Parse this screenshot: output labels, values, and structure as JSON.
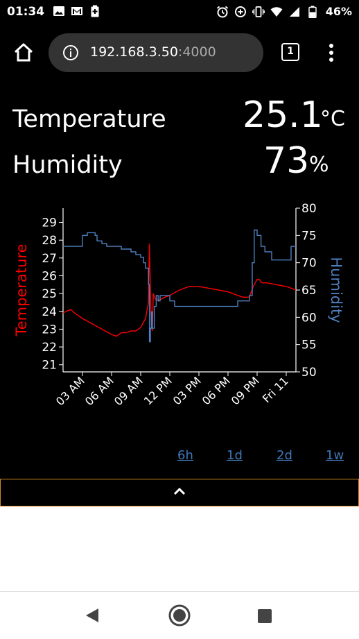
{
  "status_bar": {
    "time": "01:34",
    "battery_percent": "46%",
    "left_icons": [
      "image-icon",
      "gmail-icon",
      "battery-saver-icon"
    ],
    "right_icons": [
      "alarm-icon",
      "data-saver-icon",
      "vibrate-icon",
      "wifi-icon",
      "signal-icon",
      "battery-icon"
    ]
  },
  "browser": {
    "url_host": "192.168.3.50",
    "url_port": ":4000",
    "tab_count": "1"
  },
  "readings": {
    "temperature_label": "Temperature",
    "temperature_value": "25.1",
    "temperature_unit": "°C",
    "humidity_label": "Humidity",
    "humidity_value": "73",
    "humidity_unit": "%"
  },
  "chart_data": {
    "type": "line",
    "ylabel": "Temperature",
    "y2label": "Humidity",
    "ylim": [
      20.6,
      29.8
    ],
    "y2lim": [
      50,
      80
    ],
    "yticks": [
      21,
      22,
      23,
      24,
      25,
      26,
      27,
      28,
      29
    ],
    "y2ticks": [
      50,
      55,
      60,
      65,
      70,
      75,
      80
    ],
    "x_range_hours": [
      0,
      24
    ],
    "xtick_positions_hours": [
      2,
      5,
      8,
      11,
      14,
      17,
      20,
      23
    ],
    "xtick_labels": [
      "03 AM",
      "06 AM",
      "09 AM",
      "12 PM",
      "03 PM",
      "06 PM",
      "09 PM",
      "Fri 11"
    ],
    "colors": {
      "temperature": "#ff0000",
      "humidity": "#4f7fbf"
    },
    "series": [
      {
        "name": "Temperature",
        "axis": "left",
        "x": [
          0,
          0.3,
          0.8,
          1.2,
          2,
          3,
          4,
          5,
          5.5,
          6,
          6.5,
          7,
          7.5,
          8,
          8.5,
          8.8,
          8.9,
          9.0,
          9.1,
          9.2,
          9.3,
          9.5,
          9.8,
          10.5,
          11,
          12,
          13,
          14,
          15,
          16,
          17,
          18,
          18.5,
          19.2,
          19.6,
          20,
          20.2,
          20.5,
          21,
          22,
          23,
          23.5,
          24
        ],
        "y": [
          23.9,
          24.0,
          24.1,
          23.9,
          23.6,
          23.3,
          23.0,
          22.7,
          22.6,
          22.8,
          22.8,
          22.9,
          22.9,
          23.1,
          23.6,
          24.5,
          27.8,
          25.2,
          23.2,
          22.9,
          25.0,
          24.7,
          24.6,
          24.8,
          24.9,
          25.2,
          25.4,
          25.4,
          25.3,
          25.2,
          25.1,
          24.9,
          24.8,
          24.8,
          25.4,
          25.8,
          25.8,
          25.6,
          25.6,
          25.5,
          25.4,
          25.3,
          25.2
        ]
      },
      {
        "name": "Humidity",
        "axis": "right",
        "x": [
          0,
          1.0,
          2.0,
          2.5,
          3.3,
          3.5,
          4.0,
          4.5,
          5,
          6,
          7,
          7.5,
          8.0,
          8.3,
          8.5,
          8.8,
          8.9,
          9.0,
          9.1,
          9.2,
          9.4,
          9.6,
          9.8,
          10.0,
          10.5,
          11.0,
          11.5,
          12,
          13,
          14,
          15,
          16,
          17,
          18.0,
          18.5,
          19.2,
          19.5,
          19.7,
          20.0,
          20.4,
          20.8,
          21.0,
          21.5,
          22.0,
          22.5,
          23.0,
          23.5,
          24
        ],
        "y": [
          73,
          73,
          75,
          75.5,
          75,
          74,
          73.5,
          73,
          73,
          72.5,
          72,
          71.5,
          71,
          70,
          69,
          66,
          55.5,
          58,
          61,
          58,
          62,
          64,
          63,
          64,
          64,
          63,
          62,
          62,
          62,
          62,
          62,
          62,
          62,
          63,
          63,
          64,
          70,
          76,
          75,
          73,
          72,
          72,
          70.5,
          70.5,
          70.5,
          70.5,
          73,
          73
        ]
      }
    ]
  },
  "range_links": [
    "6h",
    "1d",
    "2d",
    "1w"
  ]
}
